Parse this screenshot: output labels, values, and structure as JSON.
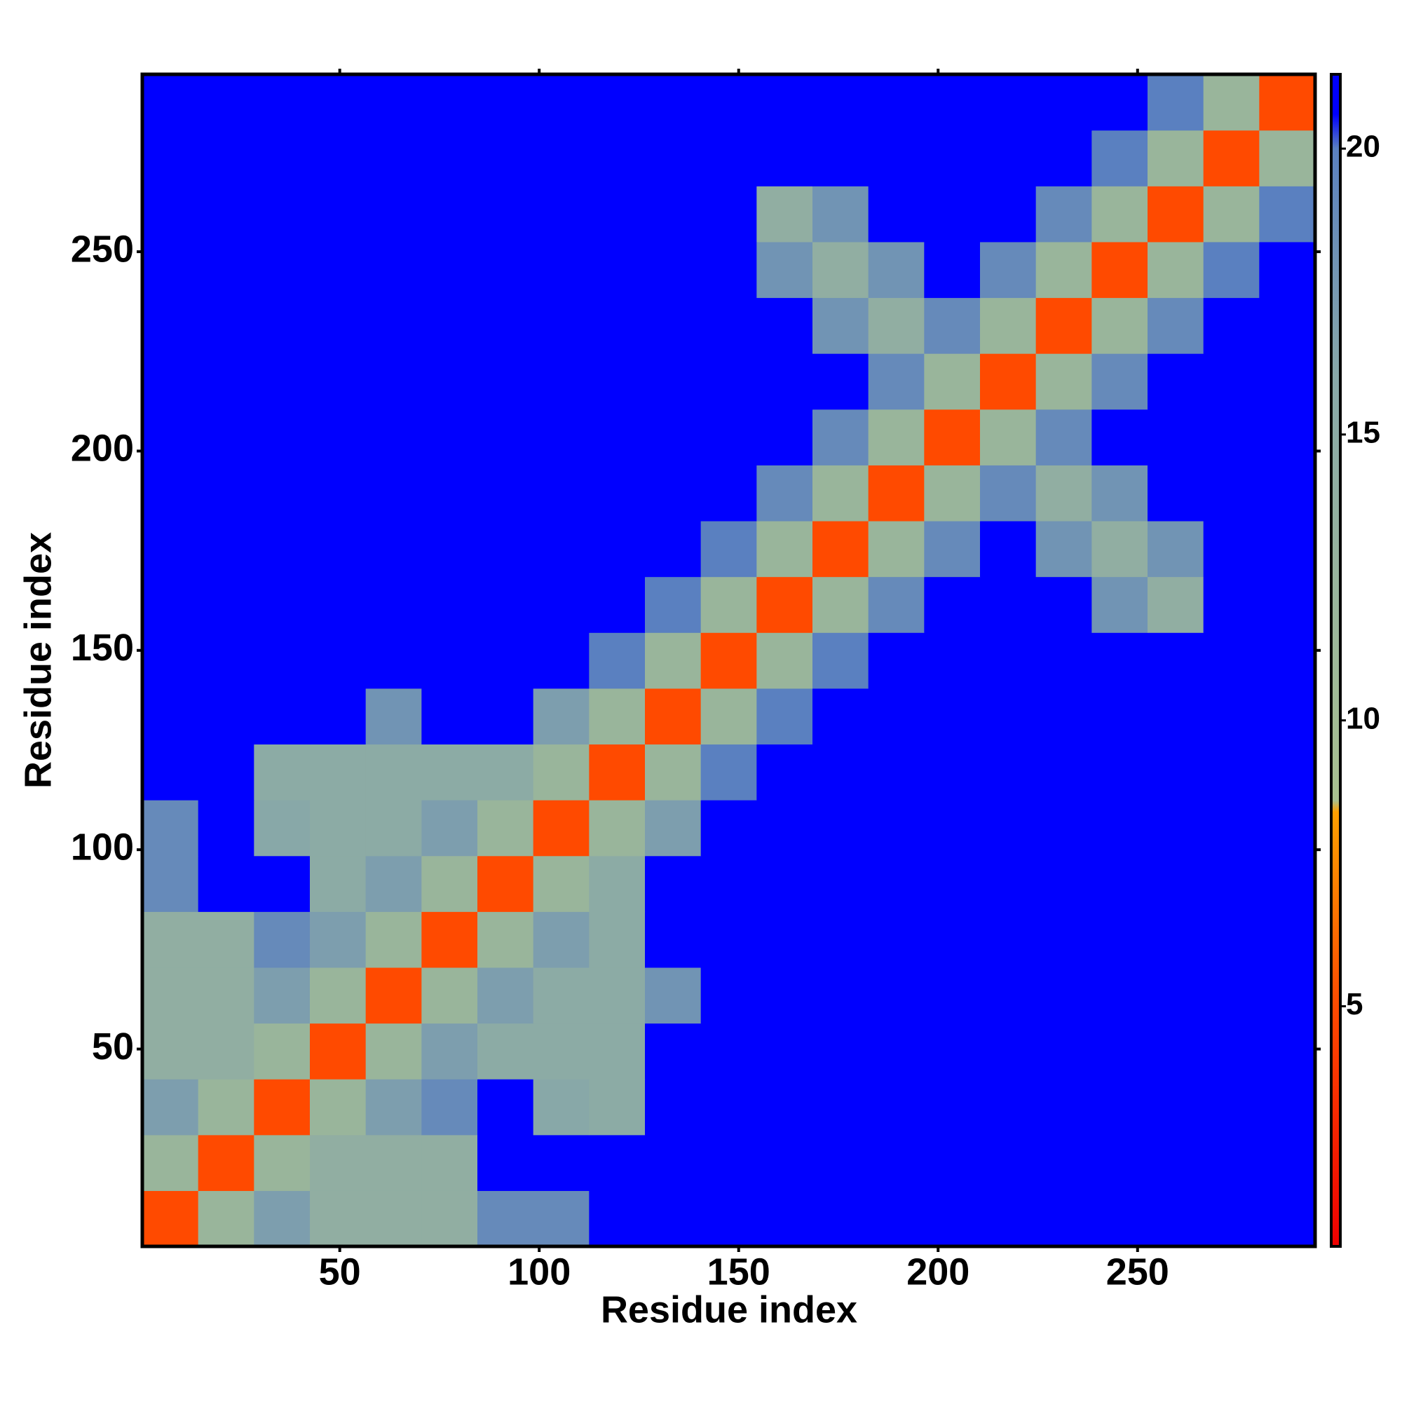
{
  "chart_data": {
    "type": "heatmap",
    "xlabel": "Residue index",
    "ylabel": "Residue index",
    "xbins": [
      0.5,
      14.5,
      28.5,
      42.5,
      56.5,
      70.5,
      84.5,
      98.5,
      112.5,
      126.5,
      140.5,
      154.5,
      168.5,
      182.5,
      196.5,
      210.5,
      224.5,
      238.5,
      252.5,
      266.5,
      280.5,
      294.5
    ],
    "ybins": [
      0.5,
      14.5,
      28.5,
      42.5,
      56.5,
      70.5,
      84.5,
      98.5,
      112.5,
      126.5,
      140.5,
      154.5,
      168.5,
      182.5,
      196.5,
      210.5,
      224.5,
      238.5,
      252.5,
      266.5,
      280.5,
      294.5
    ],
    "xlim": [
      0.5,
      294.5
    ],
    "ylim": [
      0.5,
      294.5
    ],
    "xticks": [
      50,
      100,
      150,
      200,
      250
    ],
    "yticks": [
      50,
      100,
      150,
      200,
      250
    ],
    "values": [
      [
        5,
        12,
        17,
        14,
        14,
        14,
        19,
        19,
        21,
        21,
        21,
        21,
        21,
        21,
        21,
        21,
        21,
        21,
        21,
        21,
        21
      ],
      [
        12,
        5,
        12,
        14,
        14,
        14,
        21,
        21,
        21,
        21,
        21,
        21,
        21,
        21,
        21,
        21,
        21,
        21,
        21,
        21,
        21
      ],
      [
        17,
        12,
        5,
        12,
        17,
        19,
        21,
        16,
        15,
        21,
        21,
        21,
        21,
        21,
        21,
        21,
        21,
        21,
        21,
        21,
        21
      ],
      [
        14,
        14,
        12,
        5,
        12,
        17,
        15,
        15,
        15,
        21,
        21,
        21,
        21,
        21,
        21,
        21,
        21,
        21,
        21,
        21,
        21
      ],
      [
        14,
        14,
        17,
        12,
        5,
        12,
        17,
        15,
        15,
        18,
        21,
        21,
        21,
        21,
        21,
        21,
        21,
        21,
        21,
        21,
        21
      ],
      [
        14,
        14,
        19,
        17,
        12,
        5,
        12,
        17,
        15,
        21,
        21,
        21,
        21,
        21,
        21,
        21,
        21,
        21,
        21,
        21,
        21
      ],
      [
        19,
        21,
        21,
        15,
        17,
        12,
        5,
        12,
        15,
        21,
        21,
        21,
        21,
        21,
        21,
        21,
        21,
        21,
        21,
        21,
        21
      ],
      [
        19,
        21,
        16,
        15,
        15,
        17,
        12,
        5,
        12,
        17,
        21,
        21,
        21,
        21,
        21,
        21,
        21,
        21,
        21,
        21,
        21
      ],
      [
        21,
        21,
        15,
        15,
        15,
        15,
        15,
        12,
        5,
        12,
        20,
        21,
        21,
        21,
        21,
        21,
        21,
        21,
        21,
        21,
        21
      ],
      [
        21,
        21,
        21,
        21,
        18,
        21,
        21,
        17,
        12,
        5,
        12,
        20,
        21,
        21,
        21,
        21,
        21,
        21,
        21,
        21,
        21
      ],
      [
        21,
        21,
        21,
        21,
        21,
        21,
        21,
        21,
        20,
        12,
        5,
        12,
        20,
        21,
        21,
        21,
        21,
        21,
        21,
        21,
        21
      ],
      [
        21,
        21,
        21,
        21,
        21,
        21,
        21,
        21,
        21,
        20,
        12,
        5,
        12,
        19,
        21,
        21,
        21,
        18,
        14,
        21,
        21
      ],
      [
        21,
        21,
        21,
        21,
        21,
        21,
        21,
        21,
        21,
        21,
        20,
        12,
        5,
        12,
        19,
        21,
        18,
        14,
        18,
        21,
        21
      ],
      [
        21,
        21,
        21,
        21,
        21,
        21,
        21,
        21,
        21,
        21,
        21,
        19,
        12,
        5,
        12,
        19,
        14,
        18,
        21,
        21,
        21
      ],
      [
        21,
        21,
        21,
        21,
        21,
        21,
        21,
        21,
        21,
        21,
        21,
        21,
        19,
        12,
        5,
        12,
        19,
        21,
        21,
        21,
        21
      ],
      [
        21,
        21,
        21,
        21,
        21,
        21,
        21,
        21,
        21,
        21,
        21,
        21,
        21,
        19,
        12,
        5,
        12,
        19,
        21,
        21,
        21
      ],
      [
        21,
        21,
        21,
        21,
        21,
        21,
        21,
        21,
        21,
        21,
        21,
        21,
        18,
        14,
        19,
        12,
        5,
        12,
        19,
        21,
        21
      ],
      [
        21,
        21,
        21,
        21,
        21,
        21,
        21,
        21,
        21,
        21,
        21,
        18,
        14,
        18,
        21,
        19,
        12,
        5,
        12,
        20,
        21
      ],
      [
        21,
        21,
        21,
        21,
        21,
        21,
        21,
        21,
        21,
        21,
        21,
        14,
        18,
        21,
        21,
        21,
        19,
        12,
        5,
        12,
        20
      ],
      [
        21,
        21,
        21,
        21,
        21,
        21,
        21,
        21,
        21,
        21,
        21,
        21,
        21,
        21,
        21,
        21,
        21,
        20,
        12,
        5,
        12
      ],
      [
        21,
        21,
        21,
        21,
        21,
        21,
        21,
        21,
        21,
        21,
        21,
        21,
        21,
        21,
        21,
        21,
        21,
        21,
        20,
        12,
        5
      ]
    ],
    "zlim": [
      0.8,
      21.3
    ],
    "zticks": [
      5,
      10,
      15,
      20
    ],
    "colorscale": [
      {
        "value": 0.8,
        "color": "#ee0000"
      },
      {
        "value": 5,
        "color": "#ff4a00"
      },
      {
        "value": 8.4,
        "color": "#ffa000"
      },
      {
        "value": 8.6,
        "color": "#a8c090"
      },
      {
        "value": 16,
        "color": "#88a8a8"
      },
      {
        "value": 20,
        "color": "#5a80c0"
      },
      {
        "value": 20.6,
        "color": "#0000ff"
      },
      {
        "value": 21.3,
        "color": "#0000ff"
      }
    ]
  }
}
